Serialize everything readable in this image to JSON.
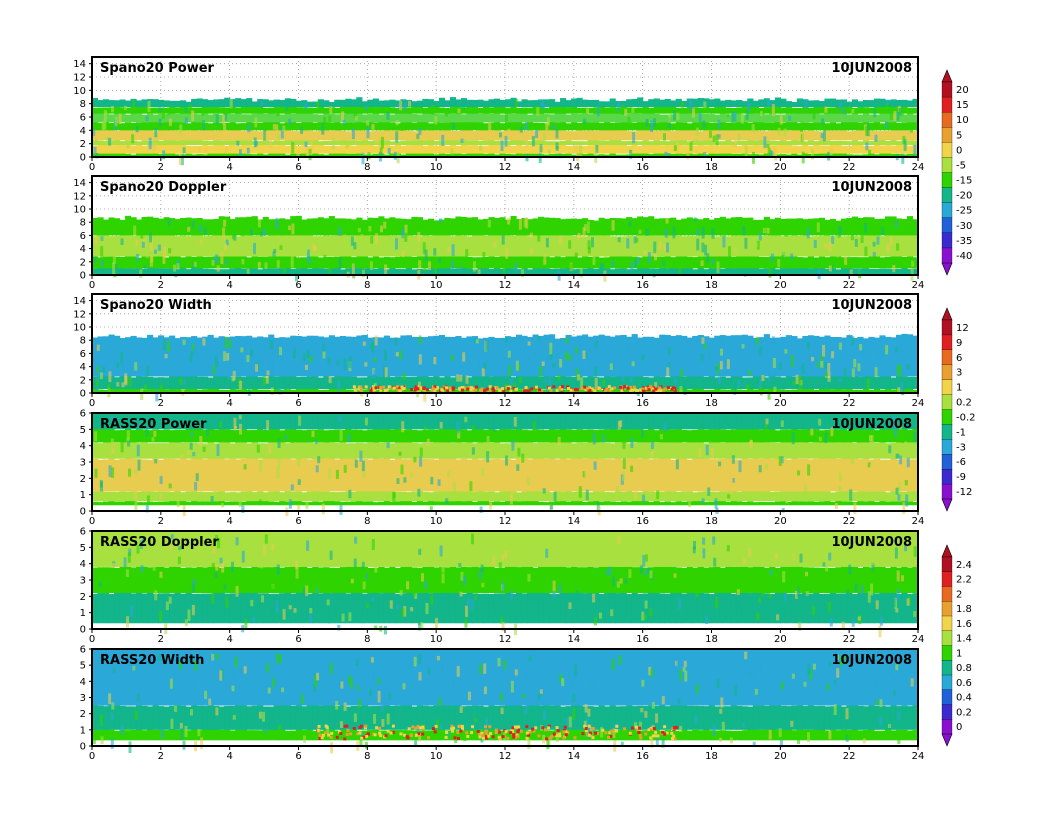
{
  "date_label": "10JUN2008",
  "x_ticks": [
    "0",
    "2",
    "4",
    "6",
    "8",
    "10",
    "12",
    "14",
    "16",
    "18",
    "20",
    "22",
    "24"
  ],
  "chart_data": [
    {
      "type": "heatmap",
      "title": "Spano20  Power",
      "date": "10JUN2008",
      "xlim": [
        0,
        24
      ],
      "ylim": [
        0,
        15
      ],
      "x_ticks": [
        0,
        2,
        4,
        6,
        8,
        10,
        12,
        14,
        16,
        18,
        20,
        22,
        24
      ],
      "y_ticks": [
        0,
        2,
        4,
        6,
        8,
        10,
        12,
        14
      ],
      "grid": true,
      "bands": [
        {
          "y0": 0.0,
          "y1": 0.5,
          "color": "#2fd400"
        },
        {
          "y0": 0.5,
          "y1": 1.8,
          "color": "#f0d44a"
        },
        {
          "y0": 1.8,
          "y1": 2.5,
          "color": "#a8e040"
        },
        {
          "y0": 2.5,
          "y1": 4.0,
          "color": "#e8cc50"
        },
        {
          "y0": 4.0,
          "y1": 5.2,
          "color": "#2fd400"
        },
        {
          "y0": 5.2,
          "y1": 6.5,
          "color": "#5ad84a"
        },
        {
          "y0": 6.5,
          "y1": 7.5,
          "color": "#2fd400"
        },
        {
          "y0": 7.5,
          "y1": 8.6,
          "color": "#13b58b"
        }
      ],
      "top_height": 8.7,
      "colorbar": {
        "labels": [
          "20",
          "15",
          "10",
          "5",
          "0",
          "-5",
          "-15",
          "-20",
          "-25",
          "-30",
          "-35",
          "-40"
        ]
      }
    },
    {
      "type": "heatmap",
      "title": "Spano20  Doppler",
      "date": "10JUN2008",
      "xlim": [
        0,
        24
      ],
      "ylim": [
        0,
        15
      ],
      "x_ticks": [
        0,
        2,
        4,
        6,
        8,
        10,
        12,
        14,
        16,
        18,
        20,
        22,
        24
      ],
      "y_ticks": [
        0,
        2,
        4,
        6,
        8,
        10,
        12,
        14
      ],
      "grid": true,
      "bands": [
        {
          "y0": 0.0,
          "y1": 1.0,
          "color": "#13b58b"
        },
        {
          "y0": 1.0,
          "y1": 2.8,
          "color": "#2fd400"
        },
        {
          "y0": 2.8,
          "y1": 6.0,
          "color": "#a8e040"
        },
        {
          "y0": 6.0,
          "y1": 8.6,
          "color": "#2fd400"
        }
      ],
      "top_height": 8.7,
      "colorbar": null
    },
    {
      "type": "heatmap",
      "title": "Spano20  Width",
      "date": "10JUN2008",
      "xlim": [
        0,
        24
      ],
      "ylim": [
        0,
        15
      ],
      "x_ticks": [
        0,
        2,
        4,
        6,
        8,
        10,
        12,
        14,
        16,
        18,
        20,
        22,
        24
      ],
      "y_ticks": [
        0,
        2,
        4,
        6,
        8,
        10,
        12,
        14
      ],
      "grid": true,
      "bands": [
        {
          "y0": 0.0,
          "y1": 0.6,
          "color": "#2fd400"
        },
        {
          "y0": 0.6,
          "y1": 2.5,
          "color": "#13b58b"
        },
        {
          "y0": 2.5,
          "y1": 8.6,
          "color": "#2aa8d8"
        }
      ],
      "hot_band": {
        "x0": 7.5,
        "x1": 17.0,
        "y0": 0.2,
        "y1": 0.9,
        "colors": [
          "#f0d44a",
          "#e8a030",
          "#e02020"
        ]
      },
      "top_height": 8.7,
      "colorbar": {
        "labels": [
          "12",
          "9",
          "6",
          "3",
          "1",
          "0.2",
          "-0.2",
          "-1",
          "-3",
          "-6",
          "-9",
          "-12"
        ]
      }
    },
    {
      "type": "heatmap",
      "title": "RASS20  Power",
      "date": "10JUN2008",
      "xlim": [
        0,
        24
      ],
      "ylim": [
        0,
        6
      ],
      "x_ticks": [
        0,
        2,
        4,
        6,
        8,
        10,
        12,
        14,
        16,
        18,
        20,
        22,
        24
      ],
      "y_ticks": [
        0,
        1,
        2,
        3,
        4,
        5,
        6
      ],
      "grid": false,
      "bands": [
        {
          "y0": 0.0,
          "y1": 0.35,
          "color": "#ffffff"
        },
        {
          "y0": 0.35,
          "y1": 0.6,
          "color": "#2fd400"
        },
        {
          "y0": 0.6,
          "y1": 1.2,
          "color": "#a8e040"
        },
        {
          "y0": 1.2,
          "y1": 3.2,
          "color": "#e8cc50"
        },
        {
          "y0": 3.2,
          "y1": 4.2,
          "color": "#a8e040"
        },
        {
          "y0": 4.2,
          "y1": 5.0,
          "color": "#2fd400"
        },
        {
          "y0": 5.0,
          "y1": 6.0,
          "color": "#13b58b"
        }
      ],
      "top_height": 6.0,
      "colorbar": null
    },
    {
      "type": "heatmap",
      "title": "RASS20  Doppler",
      "date": "10JUN2008",
      "xlim": [
        0,
        24
      ],
      "ylim": [
        0,
        6
      ],
      "x_ticks": [
        0,
        2,
        4,
        6,
        8,
        10,
        12,
        14,
        16,
        18,
        20,
        22,
        24
      ],
      "y_ticks": [
        0,
        1,
        2,
        3,
        4,
        5,
        6
      ],
      "grid": false,
      "bands": [
        {
          "y0": 0.0,
          "y1": 0.35,
          "color": "#ffffff"
        },
        {
          "y0": 0.35,
          "y1": 2.2,
          "color": "#13b58b"
        },
        {
          "y0": 2.2,
          "y1": 3.8,
          "color": "#2fd400"
        },
        {
          "y0": 3.8,
          "y1": 6.0,
          "color": "#a8e040"
        }
      ],
      "top_height": 6.0,
      "colorbar": {
        "labels": [
          "2.4",
          "2.2",
          "2",
          "1.8",
          "1.6",
          "1.4",
          "1",
          "0.8",
          "0.6",
          "0.4",
          "0.2",
          "0"
        ]
      }
    },
    {
      "type": "heatmap",
      "title": "RASS20  Width",
      "date": "10JUN2008",
      "xlim": [
        0,
        24
      ],
      "ylim": [
        0,
        6
      ],
      "x_ticks": [
        0,
        2,
        4,
        6,
        8,
        10,
        12,
        14,
        16,
        18,
        20,
        22,
        24
      ],
      "y_ticks": [
        0,
        1,
        2,
        3,
        4,
        5,
        6
      ],
      "grid": false,
      "bands": [
        {
          "y0": 0.0,
          "y1": 0.35,
          "color": "#ffffff"
        },
        {
          "y0": 0.35,
          "y1": 1.0,
          "color": "#2fd400"
        },
        {
          "y0": 1.0,
          "y1": 2.5,
          "color": "#13b58b"
        },
        {
          "y0": 2.5,
          "y1": 6.0,
          "color": "#2aa8d8"
        }
      ],
      "hot_band": {
        "x0": 6.5,
        "x1": 17.0,
        "y0": 0.4,
        "y1": 1.2,
        "colors": [
          "#f0d44a",
          "#e8a030",
          "#e02020"
        ]
      },
      "top_height": 6.0,
      "colorbar": null
    }
  ],
  "colorbar_palette": [
    "#b01020",
    "#e02020",
    "#e86a20",
    "#e8a030",
    "#f0d44a",
    "#a8e040",
    "#2fd400",
    "#13b58b",
    "#2aa8d8",
    "#2060d8",
    "#3a2ad0",
    "#8a10d0"
  ]
}
